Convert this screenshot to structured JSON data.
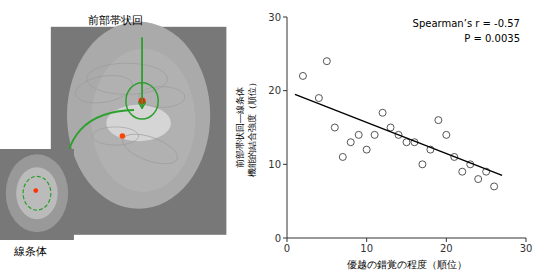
{
  "chart_data": {
    "type": "scatter",
    "xlabel": "優越の錯覚の程度（順位）",
    "ylabel": "前部帯状回―線条体\n機能的結合強度（順位）",
    "annotations": [
      "Spearman’s r = -0.57",
      "P = 0.0035",
      "前部帯状回",
      "線条体"
    ],
    "series": [
      {
        "type": "scatter",
        "color": "#555555",
        "marker": "circle",
        "x": [
          2,
          4,
          5,
          6,
          7,
          8,
          9,
          10,
          11,
          12,
          13,
          14,
          15,
          16,
          17,
          18,
          19,
          20,
          21,
          22,
          23,
          24,
          25,
          26
        ],
        "values": [
          22,
          19,
          24,
          15,
          11,
          13,
          14,
          12,
          14,
          17,
          15,
          14,
          13,
          13,
          10,
          12,
          16,
          14,
          11,
          9,
          10,
          8,
          9,
          7
        ]
      },
      {
        "type": "line",
        "color": "black",
        "line_style": "solid",
        "x": [
          1,
          27
        ],
        "values": [
          19.5,
          8.5
        ]
      }
    ],
    "xlim": [
      0,
      30
    ],
    "ylim": [
      0,
      30
    ],
    "xticks": [
      0,
      10,
      20,
      30
    ],
    "yticks": [
      0,
      10,
      20,
      30
    ],
    "grid": false
  }
}
